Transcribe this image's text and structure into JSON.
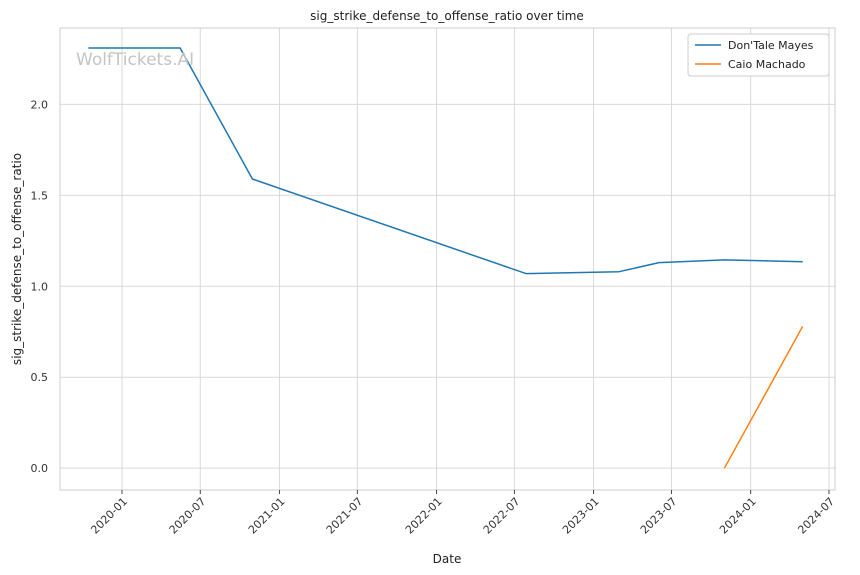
{
  "watermark": "WolfTickets.AI",
  "chart_data": {
    "type": "line",
    "title": "sig_strike_defense_to_offense_ratio over time",
    "xlabel": "Date",
    "ylabel": "sig_strike_defense_to_offense_ratio",
    "x_ticks": [
      "2020-01",
      "2020-07",
      "2021-01",
      "2021-07",
      "2022-01",
      "2022-07",
      "2023-01",
      "2023-07",
      "2024-01",
      "2024-07"
    ],
    "y_ticks": [
      0.0,
      0.5,
      1.0,
      1.5,
      2.0
    ],
    "y_tick_labels": [
      "0.0",
      "0.5",
      "1.0",
      "1.5",
      "2.0"
    ],
    "xlim": [
      "2019-08-10",
      "2024-07-15"
    ],
    "ylim": [
      -0.12,
      2.42
    ],
    "grid": true,
    "legend_position": "top-right",
    "series": [
      {
        "name": "Don'Tale Mayes",
        "color": "#1f77b4",
        "points": [
          {
            "x": "2019-10-15",
            "y": 2.31
          },
          {
            "x": "2020-05-15",
            "y": 2.31
          },
          {
            "x": "2020-10-30",
            "y": 1.59
          },
          {
            "x": "2022-07-28",
            "y": 1.07
          },
          {
            "x": "2023-03-01",
            "y": 1.08
          },
          {
            "x": "2023-06-02",
            "y": 1.13
          },
          {
            "x": "2023-11-01",
            "y": 1.145
          },
          {
            "x": "2024-05-01",
            "y": 1.135
          }
        ]
      },
      {
        "name": "Caio Machado",
        "color": "#ff7f0e",
        "points": [
          {
            "x": "2023-11-01",
            "y": 0.0
          },
          {
            "x": "2024-05-01",
            "y": 0.78
          }
        ]
      }
    ]
  }
}
